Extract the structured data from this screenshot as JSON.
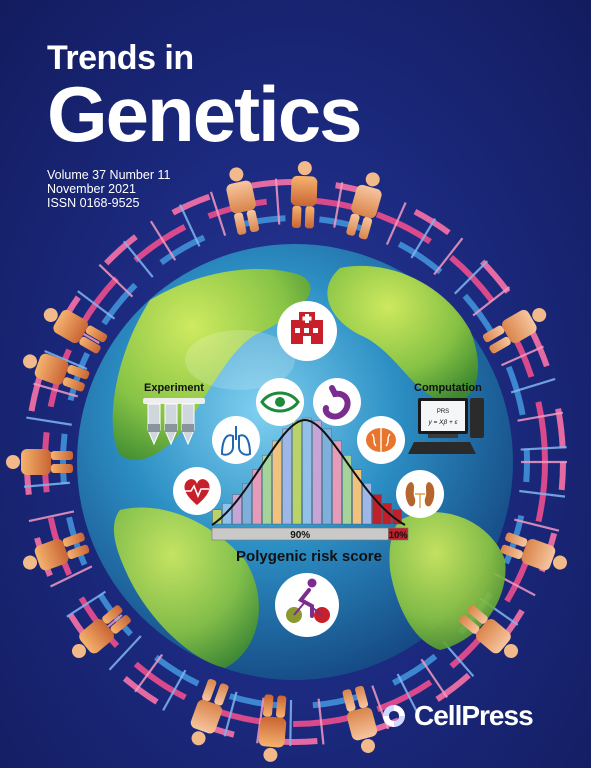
{
  "journal": {
    "title_line1": "Trends in",
    "title_line2": "Genetics"
  },
  "issue": {
    "volume": "Volume 37 Number 11",
    "date": "November 2021",
    "issn": "ISSN 0168-9525"
  },
  "figure": {
    "experiment_label": "Experiment",
    "computation_label": "Computation",
    "screen_line1": "PRS",
    "screen_line2": "y = Xβ + ε",
    "bar_left_label": "90%",
    "bar_right_label": "10%",
    "score_label": "Polygenic risk score",
    "left_fraction": 0.9,
    "right_fraction": 0.1,
    "icons": [
      "hospital-icon",
      "eye-icon",
      "stomach-icon",
      "lungs-icon",
      "brain-icon",
      "heart-icon",
      "kidneys-icon",
      "cyclist-icon",
      "test-tubes-icon",
      "computer-icon",
      "globe-icon",
      "dna-helix-icon",
      "people-icon"
    ],
    "colors": {
      "background": "#1c2a80",
      "ocean": "#2c8fc4",
      "land": "#8cc63f",
      "icon_red": "#c8202a",
      "icon_purple": "#7b2c8f",
      "icon_orange": "#e8752b",
      "dna_pink": "#d84a8c",
      "dna_blue": "#3d86d0"
    }
  },
  "publisher": {
    "name": "CellPress"
  }
}
